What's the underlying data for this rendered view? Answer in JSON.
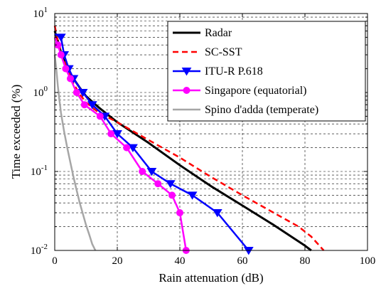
{
  "chart_data": {
    "type": "line",
    "xlabel": "Rain attenuation (dB)",
    "ylabel": "Time exceeded (%)",
    "xlim": [
      0,
      100
    ],
    "ylim": [
      0.01,
      10
    ],
    "yscale": "log",
    "grid": "dashed, major and minor",
    "legend_position": "top-right",
    "x_ticks": [
      "0",
      "20",
      "40",
      "60",
      "80",
      "100"
    ],
    "y_ticks": [
      {
        "base": "10",
        "exp": "-2"
      },
      {
        "base": "10",
        "exp": "-1"
      },
      {
        "base": "10",
        "exp": "0"
      },
      {
        "base": "10",
        "exp": "1"
      }
    ],
    "series": [
      {
        "name": "Radar",
        "color": "#000000",
        "style": "solid",
        "marker": "none",
        "x": [
          0,
          1,
          2,
          4,
          6,
          8,
          10,
          14,
          20,
          30,
          40,
          50,
          60,
          70,
          80,
          82
        ],
        "y": [
          6,
          4.5,
          3.2,
          2.0,
          1.5,
          1.15,
          0.9,
          0.65,
          0.42,
          0.23,
          0.12,
          0.065,
          0.037,
          0.021,
          0.0115,
          0.01
        ]
      },
      {
        "name": "SC-SST",
        "color": "#ff0000",
        "style": "dashed",
        "marker": "none",
        "x": [
          0,
          1,
          2,
          4,
          6,
          8,
          10,
          14,
          20,
          30,
          40,
          50,
          60,
          70,
          78,
          82,
          86
        ],
        "y": [
          7,
          4.5,
          3.2,
          2.0,
          1.3,
          0.95,
          0.75,
          0.56,
          0.42,
          0.25,
          0.15,
          0.085,
          0.05,
          0.03,
          0.02,
          0.015,
          0.01
        ]
      },
      {
        "name": "ITU-R P.618",
        "color": "#0000ff",
        "style": "solid",
        "marker": "triangle-down",
        "x": [
          0,
          2,
          3,
          4.5,
          6,
          9,
          12,
          16,
          20,
          25,
          31,
          37,
          44,
          52,
          62
        ],
        "y": [
          5.5,
          5,
          3,
          2,
          1.5,
          1,
          0.7,
          0.5,
          0.3,
          0.2,
          0.1,
          0.07,
          0.05,
          0.03,
          0.01
        ]
      },
      {
        "name": "Singapore (equatorial)",
        "color": "#ff00ff",
        "style": "solid",
        "marker": "circle",
        "x": [
          0,
          1,
          2,
          3.5,
          5,
          7,
          9.5,
          14.5,
          18,
          23,
          28,
          33,
          37.5,
          40,
          42
        ],
        "y": [
          5,
          4,
          3,
          2,
          1.5,
          1,
          0.7,
          0.5,
          0.3,
          0.2,
          0.1,
          0.07,
          0.05,
          0.03,
          0.01
        ]
      },
      {
        "name": "Spino d'adda (temperate)",
        "color": "#a6a6a6",
        "style": "solid",
        "marker": "none",
        "x": [
          0,
          0.5,
          1,
          1.5,
          2,
          3,
          4,
          5,
          6,
          7,
          8,
          9,
          10,
          11,
          12,
          13
        ],
        "y": [
          3.0,
          2.0,
          1.2,
          0.8,
          0.55,
          0.32,
          0.2,
          0.13,
          0.085,
          0.058,
          0.04,
          0.029,
          0.021,
          0.016,
          0.012,
          0.01
        ]
      }
    ]
  }
}
